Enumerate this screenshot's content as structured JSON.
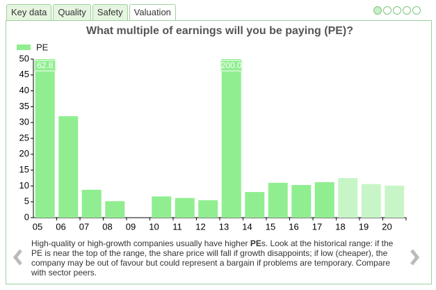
{
  "tabs": [
    "Key data",
    "Quality",
    "Safety",
    "Valuation"
  ],
  "active_tab": 3,
  "description": {
    "before": "High-quality or high-growth companies usually have higher ",
    "bold": "PE",
    "after": "s. Look at the historical range: if the PE is near the top of the range, the share price will fall if growth disappoints; if low (cheaper), the company may be out of favour but could represent a bargain if problems are temporary. Compare with sector peers."
  },
  "chart_data": {
    "type": "bar",
    "title": "What multiple of earnings will you be paying (PE)?",
    "series": [
      {
        "name": "PE",
        "color": "#90ee90",
        "colors": [
          "#90ee90",
          "#90ee90",
          "#90ee90",
          "#90ee90",
          "#90ee90",
          "#90ee90",
          "#90ee90",
          "#90ee90",
          "#90ee90",
          "#90ee90",
          "#90ee90",
          "#90ee90",
          "#90ee90",
          "#c8f5c8",
          "#c8f5c8",
          "#c8f5c8"
        ],
        "values": [
          62.8,
          32,
          8.8,
          5.2,
          null,
          6.7,
          6.2,
          5.5,
          200.0,
          8.1,
          11,
          10.3,
          11.2,
          12.5,
          10.6,
          10.1
        ],
        "value_labels": [
          "62.8",
          null,
          null,
          null,
          null,
          null,
          null,
          null,
          "200.0",
          null,
          null,
          null,
          null,
          null,
          null,
          null
        ]
      }
    ],
    "categories": [
      "05",
      "06",
      "07",
      "08",
      "09",
      "10",
      "11",
      "12",
      "13",
      "14",
      "15",
      "16",
      "17",
      "18",
      "19",
      "20"
    ],
    "ylim": [
      0,
      50
    ],
    "yticks": [
      0,
      5,
      10,
      15,
      20,
      25,
      30,
      35,
      40,
      45,
      50
    ],
    "grid": false,
    "legend": "top-left"
  }
}
